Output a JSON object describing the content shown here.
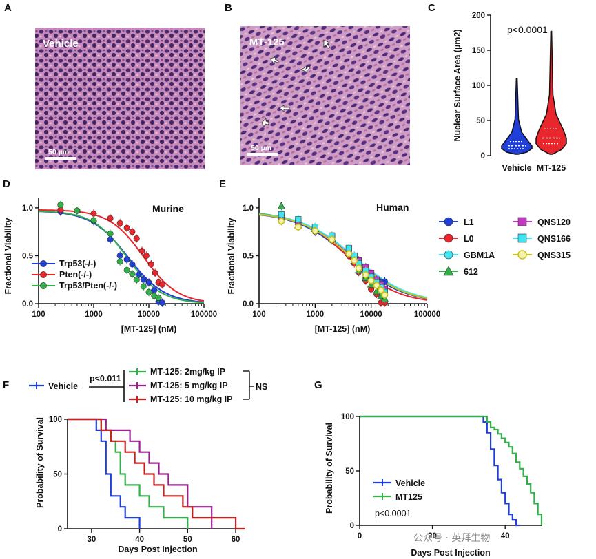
{
  "panels": {
    "a": {
      "letter": "A",
      "photo_label": "Vehicle",
      "scale_bar": "50 µm"
    },
    "b": {
      "letter": "B",
      "photo_label": "MT-125",
      "scale_bar": "50 µm"
    },
    "c": {
      "letter": "C",
      "pvalue": "p<0.0001"
    },
    "d": {
      "letter": "D",
      "title": "Murine"
    },
    "e": {
      "letter": "E",
      "title": "Human"
    },
    "f": {
      "letter": "F",
      "pvalue": "p<0.011",
      "ns": "NS"
    },
    "g": {
      "letter": "G",
      "pvalue": "p<0.0001"
    }
  },
  "watermark": "公众号 · 英拜生物",
  "colors": {
    "blue": "#1f3fd8",
    "red": "#e8262b",
    "green": "#33b04a",
    "cyan": "#3fe4f0",
    "magenta": "#c33ac3",
    "olive": "#c7c418",
    "purple": "#9b1f8f",
    "darkred": "#c8201e"
  },
  "chart_data": [
    {
      "id": "C",
      "type": "violin",
      "categories": [
        "Vehicle",
        "MT-125"
      ],
      "ylabel": "Nuclear Surface Area (µm2)",
      "ylim": [
        0,
        200
      ],
      "yticks": [
        0,
        50,
        100,
        150,
        200
      ],
      "series": [
        {
          "name": "Vehicle",
          "min": 2,
          "q1": 10,
          "median": 14,
          "q3": 20,
          "max": 110,
          "color": "blue"
        },
        {
          "name": "MT-125",
          "min": 2,
          "q1": 17,
          "median": 25,
          "q3": 38,
          "max": 177,
          "color": "red"
        }
      ]
    },
    {
      "id": "D",
      "type": "scatter",
      "xlabel": "[MT-125] (nM)",
      "ylabel": "Fractional Viability",
      "xscale": "log",
      "xlim": [
        100,
        100000
      ],
      "xticks": [
        "100",
        "1000",
        "10000",
        "100000"
      ],
      "ylim": [
        0,
        1.1
      ],
      "yticks": [
        "0.0",
        "0.5",
        "1.0"
      ],
      "legend_position": "bottom-left",
      "series": [
        {
          "name": "Trp53(-/-)",
          "color": "blue",
          "ic50": 4200,
          "hill": 1.3,
          "top": 0.97,
          "x": [
            250,
            500,
            1000,
            2000,
            3000,
            4000,
            5000,
            6500,
            8000,
            10000,
            12500,
            15000,
            17500
          ],
          "y": [
            0.96,
            0.97,
            0.86,
            0.67,
            0.5,
            0.46,
            0.41,
            0.3,
            0.25,
            0.22,
            0.14,
            0.02,
            0.01
          ]
        },
        {
          "name": "Pten(-/-)",
          "color": "red",
          "ic50": 8000,
          "hill": 1.4,
          "top": 0.98,
          "x": [
            250,
            500,
            1000,
            2000,
            3000,
            4000,
            5000,
            6000,
            7500,
            9000,
            11000,
            13000,
            15000,
            17500
          ],
          "y": [
            0.98,
            0.97,
            0.94,
            0.89,
            0.84,
            0.79,
            0.75,
            0.68,
            0.55,
            0.5,
            0.41,
            0.32,
            0.22,
            0.2
          ]
        },
        {
          "name": "Trp53/Pten(-/-)",
          "color": "green",
          "ic50": 4000,
          "hill": 1.4,
          "top": 0.97,
          "x": [
            250,
            500,
            1000,
            2000,
            3000,
            4000,
            5000,
            6000,
            8000,
            10000,
            12500,
            15000
          ],
          "y": [
            1.03,
            0.97,
            0.87,
            0.73,
            0.44,
            0.35,
            0.31,
            0.25,
            0.18,
            0.12,
            0.08,
            0.06
          ]
        }
      ]
    },
    {
      "id": "E",
      "type": "scatter",
      "xlabel": "[MT-125] (nM)",
      "ylabel": "Fractional Viability",
      "xscale": "log",
      "xlim": [
        100,
        100000
      ],
      "xticks": [
        "100",
        "1000",
        "10000",
        "100000"
      ],
      "ylim": [
        0,
        1.1
      ],
      "yticks": [
        "0.0",
        "0.5",
        "1.0"
      ],
      "legend_position": "right",
      "series": [
        {
          "name": "L1",
          "color": "blue",
          "marker": "circle",
          "ic50": 4200,
          "hill": 0.9,
          "top": 0.96,
          "x": [
            250,
            500,
            1000,
            2000,
            4000,
            5000,
            6000,
            8000,
            10000,
            12500,
            15000,
            17500
          ],
          "y": [
            0.88,
            0.83,
            0.75,
            0.67,
            0.5,
            0.44,
            0.33,
            0.27,
            0.25,
            0.24,
            0.22,
            0.23
          ]
        },
        {
          "name": "L0",
          "color": "red",
          "marker": "circle",
          "ic50": 4000,
          "hill": 1.0,
          "top": 0.96,
          "x": [
            250,
            500,
            1000,
            2000,
            4000,
            5000,
            6000,
            8000,
            10000,
            12500,
            15000,
            17500
          ],
          "y": [
            0.9,
            0.84,
            0.78,
            0.66,
            0.5,
            0.42,
            0.33,
            0.24,
            0.15,
            0.1,
            0.01,
            0.01
          ]
        },
        {
          "name": "GBM1A",
          "color": "cyan",
          "marker": "circle",
          "ic50": 4800,
          "hill": 0.9,
          "top": 0.96,
          "x": [
            250,
            500,
            1000,
            2000,
            4000,
            5000,
            6000,
            8000,
            10000,
            12500,
            15000,
            17500
          ],
          "y": [
            0.93,
            0.86,
            0.8,
            0.7,
            0.55,
            0.47,
            0.38,
            0.3,
            0.25,
            0.2,
            0.15,
            0.1
          ]
        },
        {
          "name": "612",
          "color": "green",
          "marker": "triangle",
          "ic50": 4500,
          "hill": 0.9,
          "top": 0.97,
          "x": [
            250,
            500,
            1000,
            2000,
            4000,
            5000,
            6000,
            8000,
            10000,
            12500,
            15000,
            17500
          ],
          "y": [
            1.02,
            0.82,
            0.78,
            0.68,
            0.53,
            0.45,
            0.35,
            0.27,
            0.2,
            0.13,
            0.08,
            0.05
          ]
        },
        {
          "name": "QNS120",
          "color": "magenta",
          "marker": "square",
          "ic50": 5000,
          "hill": 0.9,
          "top": 0.96,
          "x": [
            250,
            500,
            1000,
            2000,
            4000,
            5000,
            6000,
            8000,
            10000,
            12500,
            15000,
            17500
          ],
          "y": [
            0.9,
            0.85,
            0.79,
            0.7,
            0.57,
            0.5,
            0.45,
            0.38,
            0.32,
            0.25,
            0.2,
            0.15
          ]
        },
        {
          "name": "QNS166",
          "color": "cyan",
          "marker": "square",
          "ic50": 5200,
          "hill": 0.9,
          "top": 0.96,
          "x": [
            250,
            500,
            1000,
            2000,
            4000,
            5000,
            6000,
            8000,
            10000,
            12500,
            15000,
            17500
          ],
          "y": [
            0.93,
            0.88,
            0.8,
            0.71,
            0.58,
            0.5,
            0.42,
            0.34,
            0.28,
            0.22,
            0.17,
            0.12
          ]
        },
        {
          "name": "QNS315",
          "color": "olive",
          "marker": "ring",
          "ic50": 4600,
          "hill": 0.9,
          "top": 0.96,
          "x": [
            250,
            500,
            1000,
            2000,
            4000,
            5000,
            6000,
            8000,
            10000,
            12500,
            15000,
            17500
          ],
          "y": [
            0.86,
            0.8,
            0.76,
            0.67,
            0.52,
            0.45,
            0.37,
            0.3,
            0.24,
            0.19,
            0.14,
            0.09
          ]
        }
      ]
    },
    {
      "id": "F",
      "type": "line",
      "subtype": "kaplan-meier",
      "xlabel": "Days Post Injection",
      "ylabel": "Probability of Survival",
      "xlim": [
        25,
        62
      ],
      "xticks": [
        30,
        40,
        50,
        60
      ],
      "ylim": [
        0,
        100
      ],
      "yticks": [
        0,
        50,
        100
      ],
      "series": [
        {
          "name": "Vehicle",
          "color": "blue",
          "x": [
            25,
            31,
            32,
            33,
            34,
            36,
            37,
            40
          ],
          "y": [
            100,
            90,
            80,
            50,
            30,
            20,
            10,
            0
          ]
        },
        {
          "name": "MT-125: 2mg/kg IP",
          "color": "green",
          "x": [
            25,
            32,
            34,
            35,
            36,
            37,
            40,
            42,
            45,
            48,
            50
          ],
          "y": [
            100,
            90,
            80,
            70,
            50,
            40,
            30,
            20,
            10,
            10,
            0
          ]
        },
        {
          "name": "MT-125: 5 mg/kg IP",
          "color": "purple",
          "x": [
            25,
            33,
            36,
            38,
            40,
            42,
            44,
            46,
            50,
            55
          ],
          "y": [
            100,
            90,
            90,
            80,
            70,
            60,
            50,
            40,
            20,
            0
          ]
        },
        {
          "name": "MT-125: 10 mg/kg IP",
          "color": "darkred",
          "x": [
            25,
            32,
            34,
            37,
            39,
            41,
            43,
            45,
            49,
            51,
            54,
            60,
            62
          ],
          "y": [
            100,
            90,
            80,
            70,
            60,
            50,
            40,
            30,
            20,
            10,
            10,
            0,
            0
          ]
        }
      ]
    },
    {
      "id": "G",
      "type": "line",
      "subtype": "kaplan-meier",
      "xlabel": "Days Post Injection",
      "ylabel": "Probability of Survival",
      "xlim": [
        0,
        50
      ],
      "xticks": [
        0,
        20,
        40
      ],
      "ylim": [
        0,
        100
      ],
      "yticks": [
        0,
        50,
        100
      ],
      "legend_position": "bottom-left",
      "series": [
        {
          "name": "Vehicle",
          "color": "blue",
          "x": [
            0,
            34,
            35,
            36,
            37,
            38,
            39,
            40,
            41,
            42,
            43,
            44
          ],
          "y": [
            100,
            95,
            85,
            70,
            55,
            42,
            30,
            20,
            10,
            5,
            0,
            0
          ]
        },
        {
          "name": "MT125",
          "color": "green",
          "x": [
            0,
            35,
            36,
            37,
            38,
            39,
            40,
            41,
            42,
            43,
            44,
            45,
            46,
            47,
            48,
            49,
            50
          ],
          "y": [
            100,
            95,
            90,
            88,
            84,
            80,
            76,
            72,
            66,
            58,
            52,
            45,
            38,
            30,
            20,
            10,
            0
          ]
        }
      ]
    }
  ]
}
